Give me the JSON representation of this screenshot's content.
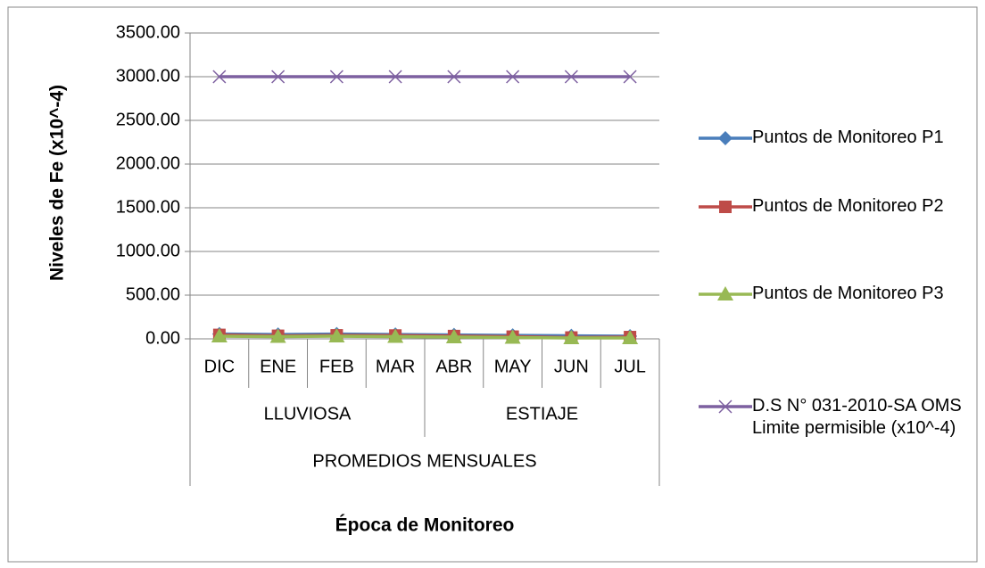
{
  "chart_data": {
    "type": "line",
    "x_label": "Época de Monitoreo",
    "y_label": "Niveles de Fe (x10^-4)",
    "categories": [
      "DIC",
      "ENE",
      "FEB",
      "MAR",
      "ABR",
      "MAY",
      "JUN",
      "JUL"
    ],
    "groups": [
      "LLUVIOSA",
      "ESTIAJE"
    ],
    "super_group": "PROMEDIOS MENSUALES",
    "ylim": [
      0,
      3500
    ],
    "yticks": [
      {
        "value": 0,
        "label": "0.00"
      },
      {
        "value": 500,
        "label": "500.00"
      },
      {
        "value": 1000,
        "label": "1000.00"
      },
      {
        "value": 1500,
        "label": "1500.00"
      },
      {
        "value": 2000,
        "label": "2000.00"
      },
      {
        "value": 2500,
        "label": "2500.00"
      },
      {
        "value": 3000,
        "label": "3000.00"
      },
      {
        "value": 3500,
        "label": "3500.00"
      }
    ],
    "grid": true,
    "legend": "right",
    "series": [
      {
        "name": "Puntos de Monitoreo P1",
        "color": "#4a7ebb",
        "marker": "diamond",
        "values": [
          55,
          50,
          55,
          50,
          45,
          40,
          35,
          30
        ]
      },
      {
        "name": "Puntos de Monitoreo P2",
        "color": "#be4b48",
        "marker": "square",
        "values": [
          45,
          35,
          40,
          38,
          32,
          25,
          15,
          20
        ]
      },
      {
        "name": "Puntos de Monitoreo P3",
        "color": "#98b954",
        "marker": "triangle",
        "values": [
          30,
          25,
          30,
          25,
          20,
          15,
          10,
          10
        ]
      },
      {
        "name": "D.S N° 031-2010-SA OMS Limite permisible (x10^-4)",
        "color": "#7d60a0",
        "marker": "x",
        "values": [
          3000,
          3000,
          3000,
          3000,
          3000,
          3000,
          3000,
          3000
        ]
      }
    ]
  }
}
